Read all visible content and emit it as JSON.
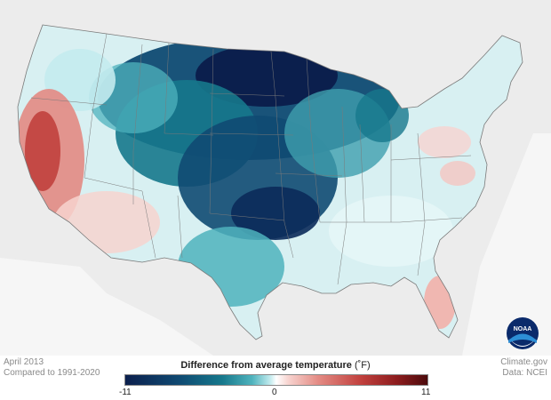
{
  "map": {
    "period": "April 2013",
    "baseline": "Compared to 1991-2020",
    "credit": "Climate.gov",
    "source": "Data: NCEI",
    "logo_text": "NOAA",
    "legend": {
      "title": "Difference from average temperature",
      "unit": "(˚F)",
      "min_label": "-11",
      "mid_label": "0",
      "max_label": "11",
      "min": -11,
      "max": 11,
      "cold_color": "#0b1f4d",
      "neutral_color": "#ffffff",
      "warm_color": "#4b0a0c"
    },
    "colors": {
      "land_outside": "#e9e9e9",
      "water": "#ffffff",
      "state_borders": "#7a7a7a"
    }
  }
}
